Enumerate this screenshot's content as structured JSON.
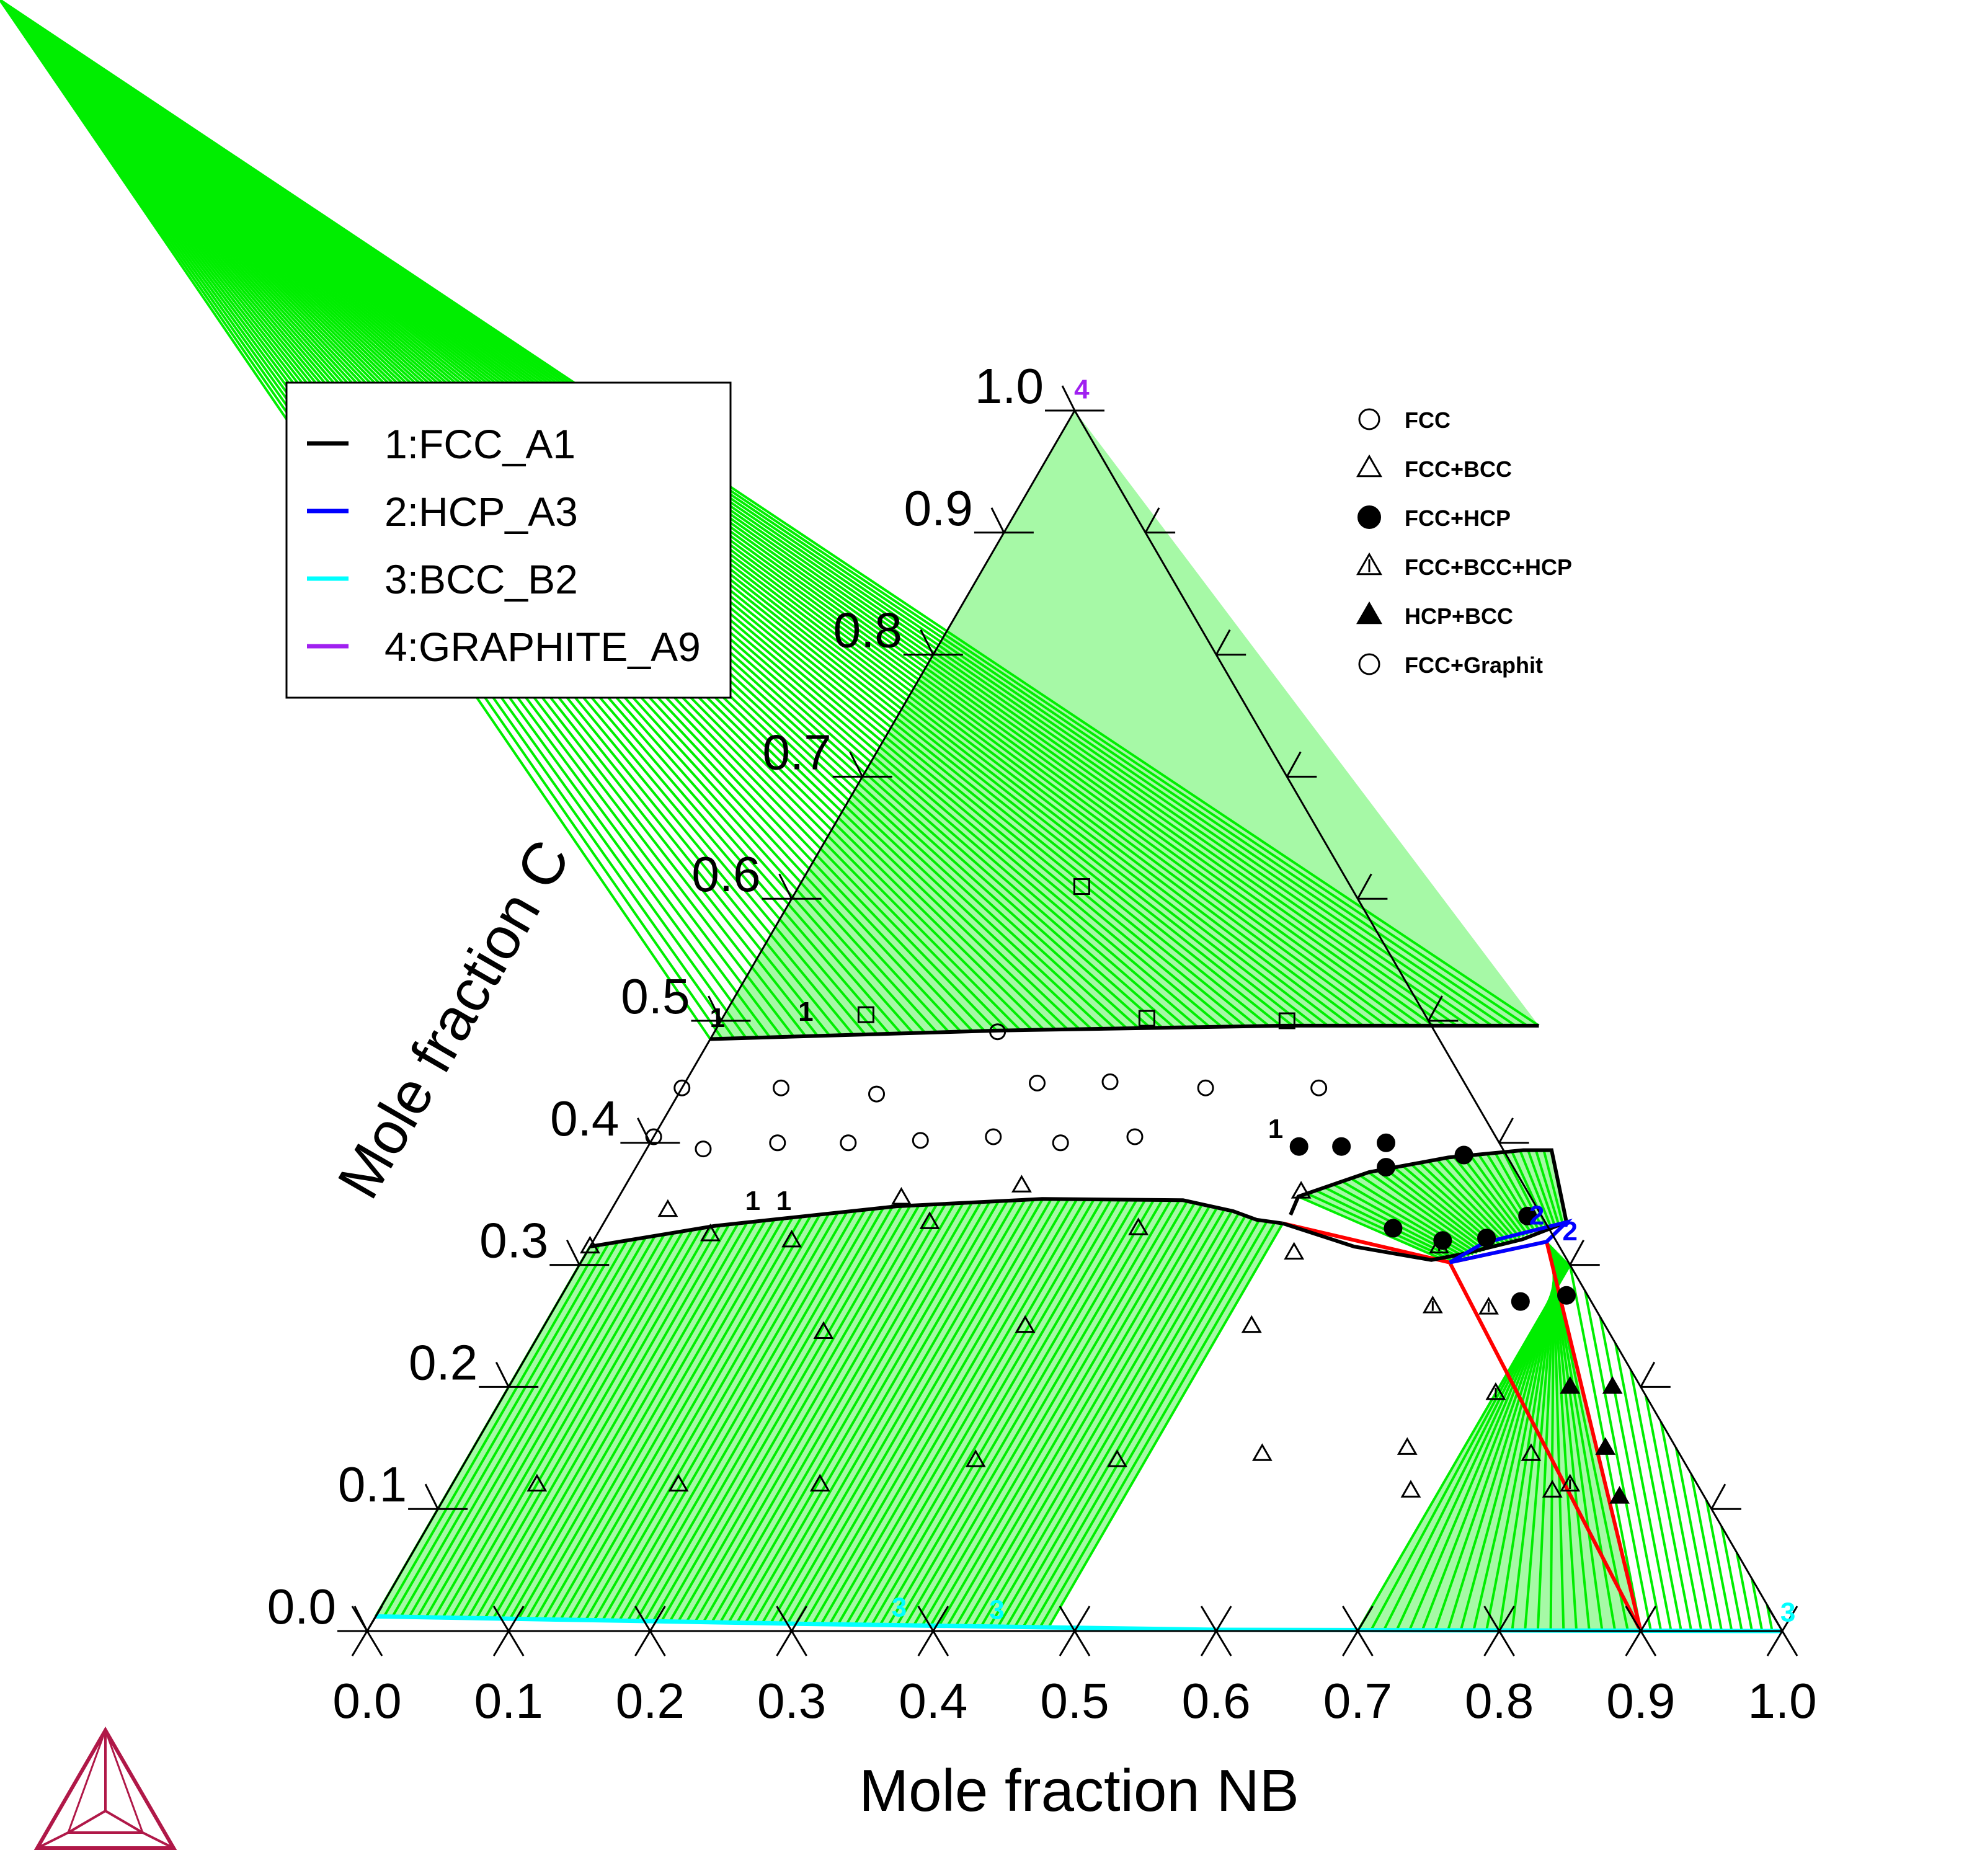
{
  "chart_data": {
    "type": "scatter",
    "subtype": "ternary-isothermal-section",
    "xlabel": "Mole fraction NB",
    "ylabel": "Mole fraction C",
    "xlim": [
      0,
      1
    ],
    "ylim": [
      0,
      1
    ],
    "ticks": [
      "0.0",
      "0.1",
      "0.2",
      "0.3",
      "0.4",
      "0.5",
      "0.6",
      "0.7",
      "0.8",
      "0.9",
      "1.0"
    ],
    "legend": {
      "placement": "top-left",
      "entries": [
        {
          "label": "1:FCC_A1",
          "color": "#000000"
        },
        {
          "label": "2:HCP_A3",
          "color": "#0000ff"
        },
        {
          "label": "3:BCC_B2",
          "color": "#00ffff"
        },
        {
          "label": "4:GRAPHITE_A9",
          "color": "#a020f0"
        }
      ]
    },
    "marker_legend": {
      "placement": "top-right",
      "entries": [
        {
          "label": "FCC",
          "marker": "circle"
        },
        {
          "label": "FCC+BCC",
          "marker": "triangle"
        },
        {
          "label": "FCC+HCP",
          "marker": "filled-circle"
        },
        {
          "label": "FCC+BCC+HCP",
          "marker": "triangle-bar"
        },
        {
          "label": "HCP+BCC",
          "marker": "filled-triangle"
        },
        {
          "label": "FCC+Graphit",
          "marker": "circle"
        }
      ]
    },
    "colors": {
      "tieline": "#00ee00",
      "three_phase": "#ff0000",
      "fcc": "#000000",
      "hcp": "#0000ff",
      "bcc": "#00ffff",
      "graphite": "#a020f0"
    },
    "boundaries": {
      "fcc_upper": [
        [
          0.0,
          0.485
        ],
        [
          0.2,
          0.492
        ],
        [
          0.4,
          0.496
        ],
        [
          0.58,
          0.496
        ]
      ],
      "fcc_lower": [
        [
          0.0,
          0.315
        ],
        [
          0.08,
          0.332
        ],
        [
          0.2,
          0.348
        ],
        [
          0.3,
          0.354
        ],
        [
          0.4,
          0.353
        ],
        [
          0.44,
          0.344
        ],
        [
          0.46,
          0.337
        ],
        [
          0.48,
          0.334
        ]
      ],
      "fcc_lobe": [
        [
          0.482,
          0.341
        ],
        [
          0.48,
          0.356
        ],
        [
          0.52,
          0.376
        ],
        [
          0.57,
          0.388
        ],
        [
          0.62,
          0.394
        ],
        [
          0.64,
          0.394
        ],
        [
          0.68,
          0.335
        ],
        [
          0.656,
          0.321
        ],
        [
          0.62,
          0.309
        ],
        [
          0.6,
          0.304
        ],
        [
          0.54,
          0.315
        ],
        [
          0.48,
          0.334
        ]
      ],
      "hcp": [
        [
          0.614,
          0.302
        ],
        [
          0.63,
          0.318
        ],
        [
          0.68,
          0.335
        ],
        [
          0.674,
          0.319
        ],
        [
          0.614,
          0.302
        ]
      ],
      "bcc": [
        [
          0.0,
          0.012
        ],
        [
          0.3,
          0.006
        ],
        [
          0.6,
          0.001
        ],
        [
          1.0,
          0.0
        ]
      ],
      "three_phase_1": [
        [
          0.48,
          0.334
        ],
        [
          0.614,
          0.302
        ],
        [
          0.9,
          0.0
        ]
      ],
      "three_phase_2": [
        [
          0.614,
          0.302
        ],
        [
          0.674,
          0.319
        ],
        [
          0.9,
          0.0
        ]
      ]
    },
    "labels": [
      {
        "text": "1",
        "x": 0.06,
        "y": 0.5,
        "series": "1:FCC_A1"
      },
      {
        "text": "1",
        "x": 0.0,
        "y": 0.495,
        "series": "1:FCC_A1"
      },
      {
        "text": "1",
        "x": 0.1,
        "y": 0.345,
        "series": "1:FCC_A1"
      },
      {
        "text": "1",
        "x": 0.122,
        "y": 0.345,
        "series": "1:FCC_A1"
      },
      {
        "text": "1",
        "x": 0.44,
        "y": 0.404,
        "series": "1:FCC_A1"
      },
      {
        "text": "2",
        "x": 0.66,
        "y": 0.333,
        "series": "2:HCP_A3"
      },
      {
        "text": "2",
        "x": 0.69,
        "y": 0.32,
        "series": "2:HCP_A3"
      },
      {
        "text": "3",
        "x": 0.37,
        "y": 0.012,
        "series": "3:BCC_B2"
      },
      {
        "text": "3",
        "x": 0.44,
        "y": 0.01,
        "series": "3:BCC_B2"
      },
      {
        "text": "3",
        "x": 1.0,
        "y": 0.008,
        "series": "3:BCC_B2"
      },
      {
        "text": "4",
        "x": 0.0,
        "y": 1.01,
        "series": "4:GRAPHITE_A9"
      }
    ],
    "points": [
      {
        "x": 0.2,
        "y": 0.61,
        "m": "square"
      },
      {
        "x": 0.1,
        "y": 0.505,
        "m": "square"
      },
      {
        "x": 0.3,
        "y": 0.502,
        "m": "square"
      },
      {
        "x": 0.4,
        "y": 0.5,
        "m": "square"
      },
      {
        "x": 0.2,
        "y": 0.491,
        "m": "circle"
      },
      {
        "x": 0.0,
        "y": 0.445,
        "m": "circle"
      },
      {
        "x": 0.07,
        "y": 0.445,
        "m": "circle"
      },
      {
        "x": 0.14,
        "y": 0.44,
        "m": "circle"
      },
      {
        "x": 0.249,
        "y": 0.449,
        "m": "circle"
      },
      {
        "x": 0.3,
        "y": 0.45,
        "m": "circle"
      },
      {
        "x": 0.37,
        "y": 0.445,
        "m": "circle"
      },
      {
        "x": 0.45,
        "y": 0.445,
        "m": "circle"
      },
      {
        "x": 0.0,
        "y": 0.405,
        "m": "circle"
      },
      {
        "x": 0.04,
        "y": 0.395,
        "m": "circle"
      },
      {
        "x": 0.09,
        "y": 0.4,
        "m": "circle"
      },
      {
        "x": 0.14,
        "y": 0.4,
        "m": "circle"
      },
      {
        "x": 0.19,
        "y": 0.402,
        "m": "circle"
      },
      {
        "x": 0.24,
        "y": 0.405,
        "m": "circle"
      },
      {
        "x": 0.29,
        "y": 0.4,
        "m": "circle"
      },
      {
        "x": 0.34,
        "y": 0.405,
        "m": "circle"
      },
      {
        "x": 0.0,
        "y": 0.315,
        "m": "triangle"
      },
      {
        "x": 0.04,
        "y": 0.345,
        "m": "triangle"
      },
      {
        "x": 0.08,
        "y": 0.325,
        "m": "triangle"
      },
      {
        "x": 0.2,
        "y": 0.355,
        "m": "triangle"
      },
      {
        "x": 0.14,
        "y": 0.32,
        "m": "triangle"
      },
      {
        "x": 0.23,
        "y": 0.335,
        "m": "triangle"
      },
      {
        "x": 0.28,
        "y": 0.365,
        "m": "triangle"
      },
      {
        "x": 0.38,
        "y": 0.33,
        "m": "triangle"
      },
      {
        "x": 0.48,
        "y": 0.36,
        "m": "triangle"
      },
      {
        "x": 0.5,
        "y": 0.31,
        "m": "triangle"
      },
      {
        "x": 0.2,
        "y": 0.245,
        "m": "triangle"
      },
      {
        "x": 0.34,
        "y": 0.25,
        "m": "triangle"
      },
      {
        "x": 0.5,
        "y": 0.25,
        "m": "triangle"
      },
      {
        "x": 0.06,
        "y": 0.12,
        "m": "triangle"
      },
      {
        "x": 0.16,
        "y": 0.12,
        "m": "triangle"
      },
      {
        "x": 0.26,
        "y": 0.12,
        "m": "triangle"
      },
      {
        "x": 0.36,
        "y": 0.14,
        "m": "triangle"
      },
      {
        "x": 0.46,
        "y": 0.14,
        "m": "triangle"
      },
      {
        "x": 0.56,
        "y": 0.145,
        "m": "triangle"
      },
      {
        "x": 0.66,
        "y": 0.15,
        "m": "triangle"
      },
      {
        "x": 0.75,
        "y": 0.145,
        "m": "triangle"
      },
      {
        "x": 0.68,
        "y": 0.115,
        "m": "triangle"
      },
      {
        "x": 0.78,
        "y": 0.115,
        "m": "triangle"
      },
      {
        "x": 0.6,
        "y": 0.315,
        "m": "triangle-bar"
      },
      {
        "x": 0.62,
        "y": 0.266,
        "m": "triangle-bar"
      },
      {
        "x": 0.66,
        "y": 0.265,
        "m": "triangle-bar"
      },
      {
        "x": 0.7,
        "y": 0.195,
        "m": "triangle-bar"
      },
      {
        "x": 0.79,
        "y": 0.12,
        "m": "triangle-bar"
      },
      {
        "x": 0.46,
        "y": 0.397,
        "m": "fcc-hcp"
      },
      {
        "x": 0.49,
        "y": 0.397,
        "m": "fcc-hcp"
      },
      {
        "x": 0.52,
        "y": 0.4,
        "m": "fcc-hcp"
      },
      {
        "x": 0.53,
        "y": 0.38,
        "m": "fcc-hcp"
      },
      {
        "x": 0.58,
        "y": 0.39,
        "m": "fcc-hcp"
      },
      {
        "x": 0.56,
        "y": 0.33,
        "m": "fcc-hcp"
      },
      {
        "x": 0.6,
        "y": 0.32,
        "m": "fcc-hcp"
      },
      {
        "x": 0.63,
        "y": 0.322,
        "m": "fcc-hcp"
      },
      {
        "x": 0.65,
        "y": 0.34,
        "m": "fcc-hcp"
      },
      {
        "x": 0.68,
        "y": 0.27,
        "m": "fcc-hcp"
      },
      {
        "x": 0.71,
        "y": 0.275,
        "m": "fcc-hcp"
      },
      {
        "x": 0.75,
        "y": 0.2,
        "m": "hcp-bcc"
      },
      {
        "x": 0.78,
        "y": 0.2,
        "m": "hcp-bcc"
      },
      {
        "x": 0.8,
        "y": 0.15,
        "m": "hcp-bcc"
      },
      {
        "x": 0.83,
        "y": 0.11,
        "m": "hcp-bcc"
      }
    ]
  }
}
